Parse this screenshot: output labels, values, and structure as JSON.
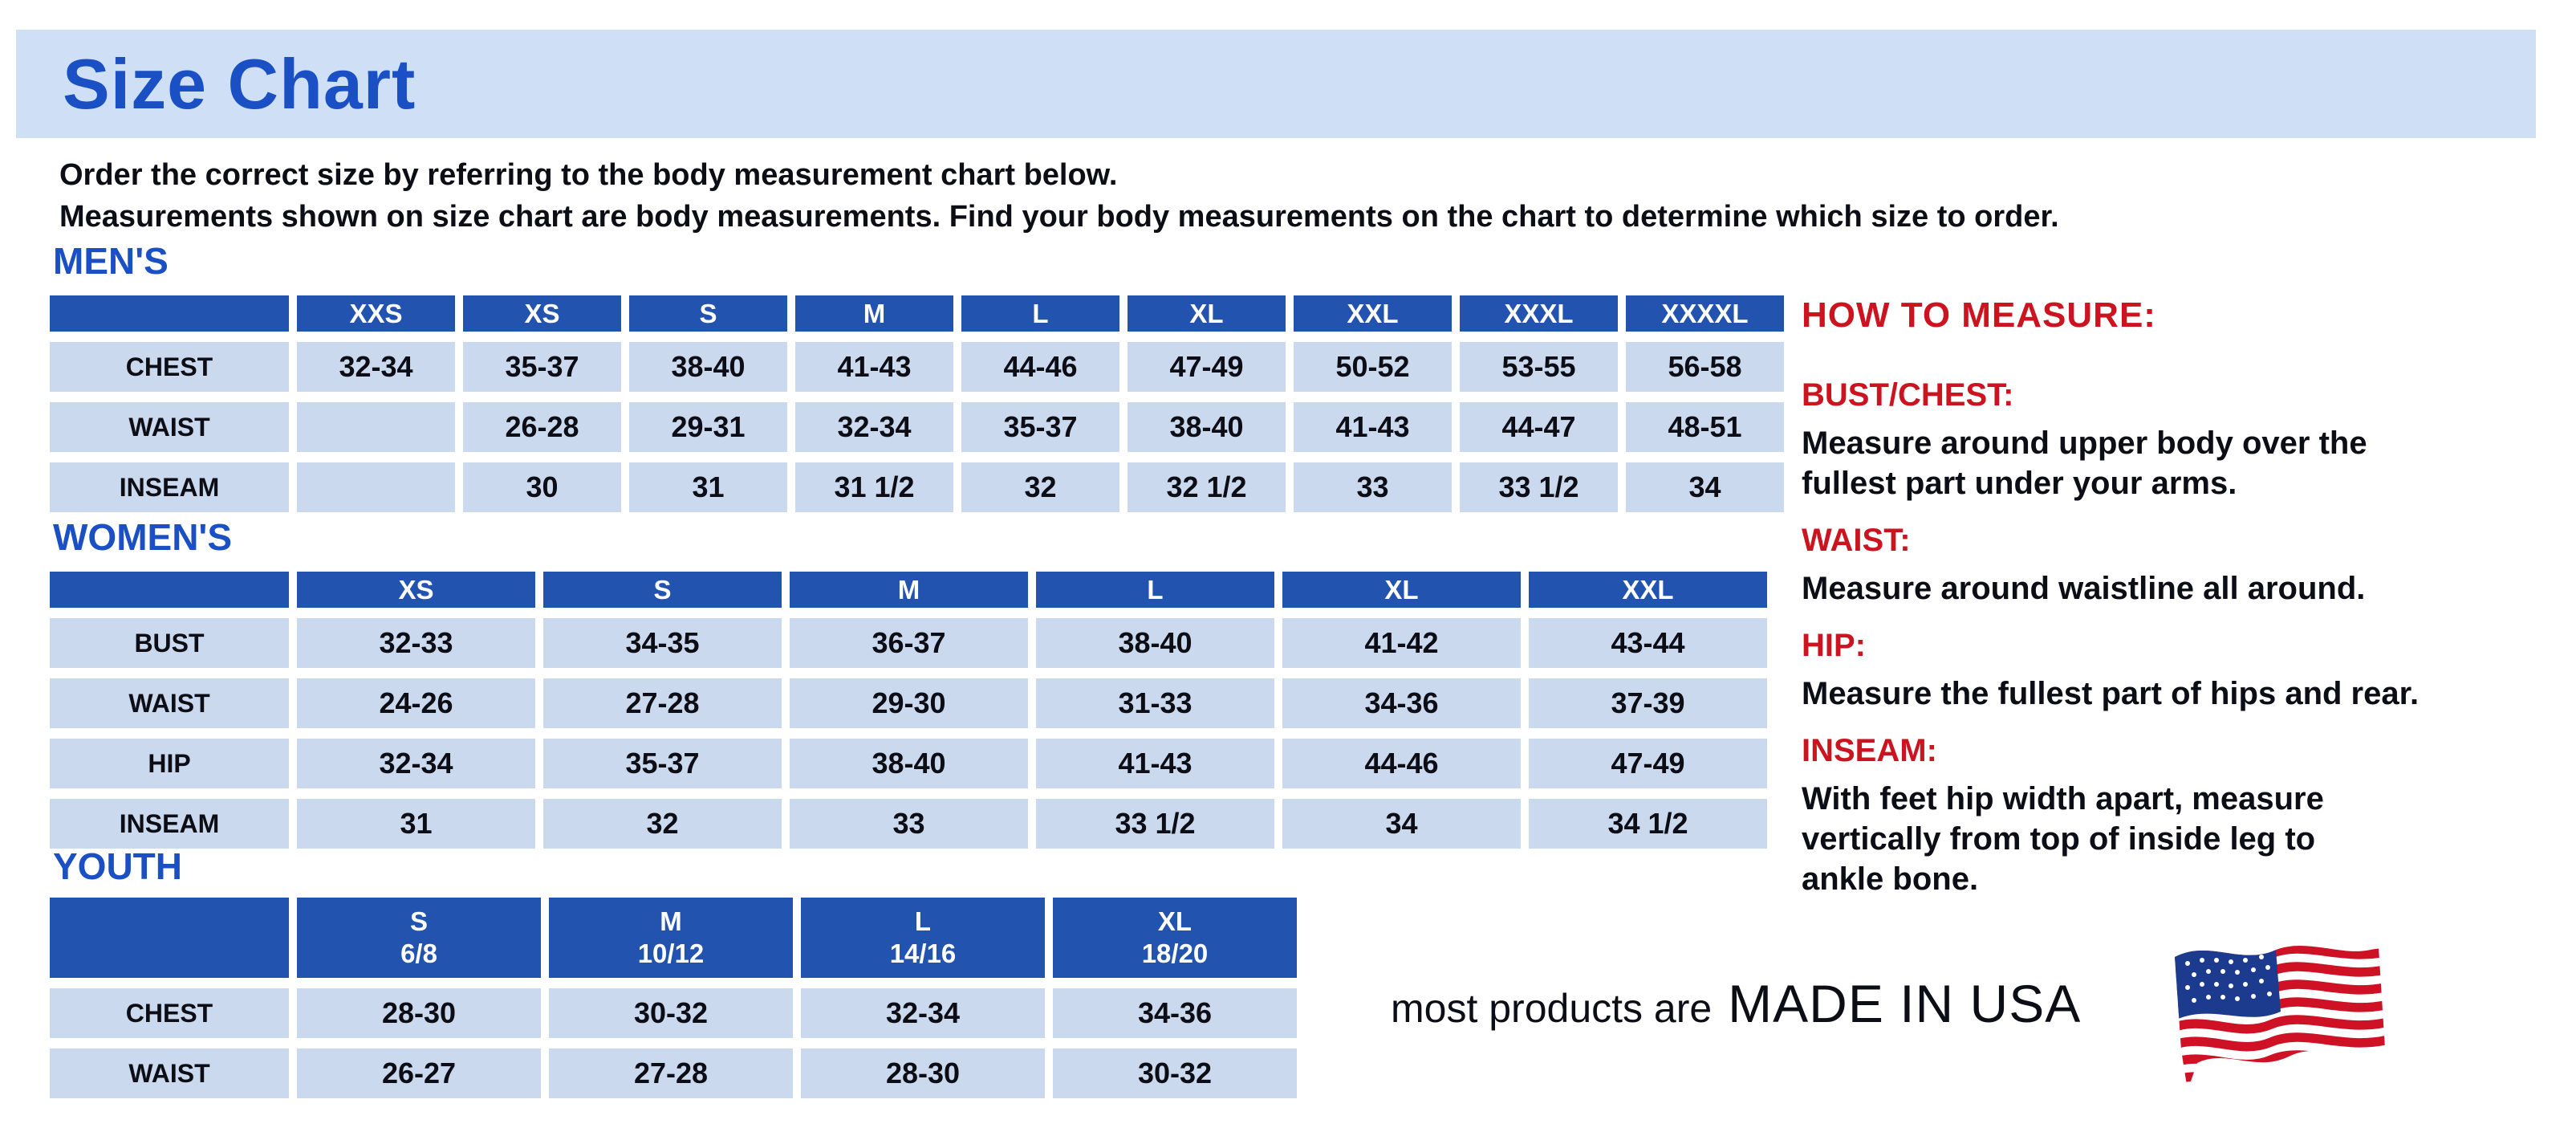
{
  "banner": {
    "title": "Size Chart"
  },
  "intro": {
    "line1": "Order the correct size by referring to the body measurement chart below.",
    "line2": "Measurements shown on size chart are body measurements.  Find your body measurements on the chart to determine which size to order."
  },
  "colors": {
    "header_blue": "#2253ae",
    "cell_blue": "#cbd9ee",
    "banner_blue": "#cfe0f6",
    "heading_blue": "#1a50c4",
    "accent_red": "#cc1420",
    "flag_navy": "#1c3b8e",
    "flag_red": "#cf1126"
  },
  "tables": {
    "mens": {
      "section_label": "MEN'S",
      "columns": [
        "XXS",
        "XS",
        "S",
        "M",
        "L",
        "XL",
        "XXL",
        "XXXL",
        "XXXXL"
      ],
      "rows": [
        {
          "label": "CHEST",
          "values": [
            "32-34",
            "35-37",
            "38-40",
            "41-43",
            "44-46",
            "47-49",
            "50-52",
            "53-55",
            "56-58"
          ]
        },
        {
          "label": "WAIST",
          "values": [
            "",
            "26-28",
            "29-31",
            "32-34",
            "35-37",
            "38-40",
            "41-43",
            "44-47",
            "48-51"
          ]
        },
        {
          "label": "INSEAM",
          "values": [
            "",
            "30",
            "31",
            "31 1/2",
            "32",
            "32 1/2",
            "33",
            "33 1/2",
            "34"
          ]
        }
      ]
    },
    "womens": {
      "section_label": "WOMEN'S",
      "columns": [
        "XS",
        "S",
        "M",
        "L",
        "XL",
        "XXL"
      ],
      "rows": [
        {
          "label": "BUST",
          "values": [
            "32-33",
            "34-35",
            "36-37",
            "38-40",
            "41-42",
            "43-44"
          ]
        },
        {
          "label": "WAIST",
          "values": [
            "24-26",
            "27-28",
            "29-30",
            "31-33",
            "34-36",
            "37-39"
          ]
        },
        {
          "label": "HIP",
          "values": [
            "32-34",
            "35-37",
            "38-40",
            "41-43",
            "44-46",
            "47-49"
          ]
        },
        {
          "label": "INSEAM",
          "values": [
            "31",
            "32",
            "33",
            "33 1/2",
            "34",
            "34 1/2"
          ]
        }
      ]
    },
    "youth": {
      "section_label": "YOUTH",
      "columns": [
        [
          "S",
          "6/8"
        ],
        [
          "M",
          "10/12"
        ],
        [
          "L",
          "14/16"
        ],
        [
          "XL",
          "18/20"
        ]
      ],
      "rows": [
        {
          "label": "CHEST",
          "values": [
            "28-30",
            "30-32",
            "32-34",
            "34-36"
          ]
        },
        {
          "label": "WAIST",
          "values": [
            "26-27",
            "27-28",
            "28-30",
            "30-32"
          ]
        }
      ]
    }
  },
  "how_to_measure": {
    "title": "HOW TO MEASURE:",
    "items": [
      {
        "label": "BUST/CHEST:",
        "lines": [
          "Measure around upper body over the",
          "fullest part under your arms."
        ]
      },
      {
        "label": "WAIST:",
        "lines": [
          "Measure around waistline all around."
        ]
      },
      {
        "label": "HIP:",
        "lines": [
          "Measure the fullest part of hips and rear."
        ]
      },
      {
        "label": "INSEAM:",
        "lines": [
          "With feet hip width apart, measure",
          "vertically from top of inside leg to",
          "ankle bone."
        ]
      }
    ]
  },
  "footer": {
    "prefix": "most products are",
    "emphasis": "MADE IN USA",
    "flag_icon": "usa-flag"
  }
}
